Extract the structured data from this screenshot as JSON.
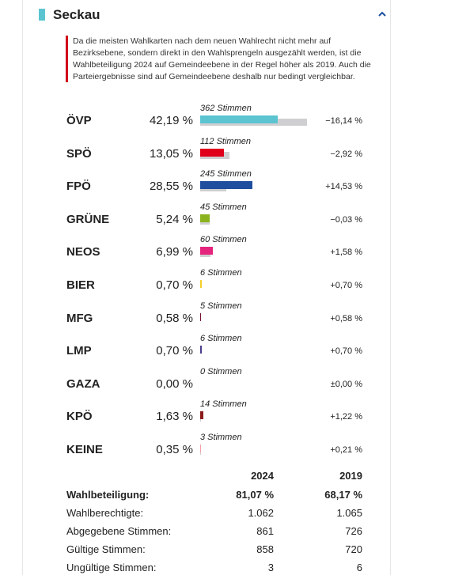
{
  "header": {
    "title": "Seckau"
  },
  "notice": {
    "lines": [
      "Da die meisten Wahlkarten nach dem neuen Wahlrecht nicht mehr auf",
      "Bezirksebene, sondern direkt in den Wahlsprengeln ausgezählt werden, ist die",
      "Wahlbeteiligung 2024 auf Gemeindeebene in der Regel höher als 2019. Auch die",
      "Parteiergebnisse sind auf Gemeindeebene deshalb nur bedingt vergleichbar."
    ]
  },
  "parties": [
    {
      "name": "ÖVP",
      "color": "#5bc4d0",
      "percent": {
        "value": 42.19,
        "label": "42,19 %"
      },
      "votes": {
        "value": 362,
        "label": "362 Stimmen"
      },
      "change": {
        "value": -16.14,
        "label": "−16,14 %"
      }
    },
    {
      "name": "SPÖ",
      "color": "#e0001a",
      "percent": {
        "value": 13.05,
        "label": "13,05 %"
      },
      "votes": {
        "value": 112,
        "label": "112 Stimmen"
      },
      "change": {
        "value": -2.92,
        "label": "−2,92 %"
      }
    },
    {
      "name": "FPÖ",
      "color": "#1f4e9e",
      "percent": {
        "value": 28.55,
        "label": "28,55 %"
      },
      "votes": {
        "value": 245,
        "label": "245 Stimmen"
      },
      "change": {
        "value": 14.53,
        "label": "+14,53 %"
      }
    },
    {
      "name": "GRÜNE",
      "color": "#8bb31d",
      "percent": {
        "value": 5.24,
        "label": "5,24 %"
      },
      "votes": {
        "value": 45,
        "label": "45 Stimmen"
      },
      "change": {
        "value": -0.03,
        "label": "−0,03 %"
      }
    },
    {
      "name": "NEOS",
      "color": "#e5247d",
      "percent": {
        "value": 6.99,
        "label": "6,99 %"
      },
      "votes": {
        "value": 60,
        "label": "60 Stimmen"
      },
      "change": {
        "value": 1.58,
        "label": "+1,58 %"
      }
    },
    {
      "name": "BIER",
      "color": "#f2d12b",
      "percent": {
        "value": 0.7,
        "label": "0,70 %"
      },
      "votes": {
        "value": 6,
        "label": "6 Stimmen"
      },
      "change": {
        "value": 0.7,
        "label": "+0,70 %"
      }
    },
    {
      "name": "MFG",
      "color": "#7b1030",
      "percent": {
        "value": 0.58,
        "label": "0,58 %"
      },
      "votes": {
        "value": 5,
        "label": "5 Stimmen"
      },
      "change": {
        "value": 0.58,
        "label": "+0,58 %"
      }
    },
    {
      "name": "LMP",
      "color": "#4a3f8c",
      "percent": {
        "value": 0.7,
        "label": "0,70 %"
      },
      "votes": {
        "value": 6,
        "label": "6 Stimmen"
      },
      "change": {
        "value": 0.7,
        "label": "+0,70 %"
      }
    },
    {
      "name": "GAZA",
      "color": "#888888",
      "percent": {
        "value": 0.0,
        "label": "0,00 %"
      },
      "votes": {
        "value": 0,
        "label": "0 Stimmen"
      },
      "change": {
        "value": 0.0,
        "label": "±0,00 %"
      }
    },
    {
      "name": "KPÖ",
      "color": "#8b1a1a",
      "percent": {
        "value": 1.63,
        "label": "1,63 %"
      },
      "votes": {
        "value": 14,
        "label": "14 Stimmen"
      },
      "change": {
        "value": 1.22,
        "label": "+1,22 %"
      }
    },
    {
      "name": "KEINE",
      "color": "#f4a0a8",
      "percent": {
        "value": 0.35,
        "label": "0,35 %"
      },
      "votes": {
        "value": 3,
        "label": "3 Stimmen"
      },
      "change": {
        "value": 0.21,
        "label": "+0,21 %"
      }
    }
  ],
  "table": {
    "columns": [
      "2024",
      "2019"
    ],
    "rows": [
      {
        "label": "Wahlbeteiligung:",
        "bold": true,
        "cells": [
          "81,07 %",
          "68,17 %"
        ]
      },
      {
        "label": "Wahlberechtigte:",
        "bold": false,
        "cells": [
          "1.062",
          "1.065"
        ]
      },
      {
        "label": "Abgegebene Stimmen:",
        "bold": false,
        "cells": [
          "861",
          "726"
        ]
      },
      {
        "label": "Gültige Stimmen:",
        "bold": false,
        "cells": [
          "858",
          "720"
        ]
      },
      {
        "label": "Ungültige Stimmen:",
        "bold": false,
        "cells": [
          "3",
          "6"
        ]
      }
    ]
  }
}
